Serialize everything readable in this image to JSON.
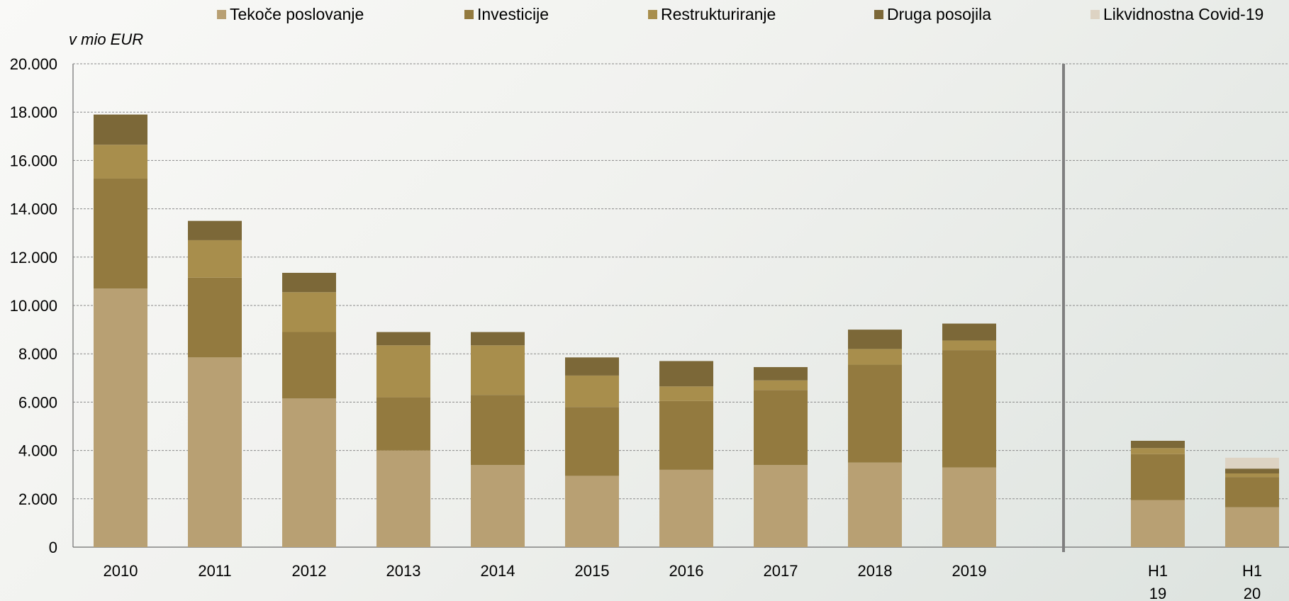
{
  "chart_data": {
    "type": "bar",
    "stacked": true,
    "unit_label": "v mio EUR",
    "categories": [
      {
        "line1": "2010",
        "line2": ""
      },
      {
        "line1": "2011",
        "line2": ""
      },
      {
        "line1": "2012",
        "line2": ""
      },
      {
        "line1": "2013",
        "line2": ""
      },
      {
        "line1": "2014",
        "line2": ""
      },
      {
        "line1": "2015",
        "line2": ""
      },
      {
        "line1": "2016",
        "line2": ""
      },
      {
        "line1": "2017",
        "line2": ""
      },
      {
        "line1": "2018",
        "line2": ""
      },
      {
        "line1": "2019",
        "line2": ""
      },
      {
        "line1": "H1",
        "line2": "19"
      },
      {
        "line1": "H1",
        "line2": "20"
      }
    ],
    "series": [
      {
        "name": "Tekoče poslovanje",
        "color": "#b8a073",
        "values": [
          10700,
          7850,
          6150,
          4000,
          3400,
          2950,
          3200,
          3400,
          3500,
          3300,
          1950,
          1650
        ]
      },
      {
        "name": "Investicije",
        "color": "#937a3f",
        "values": [
          4550,
          3300,
          2750,
          2200,
          2900,
          2850,
          2850,
          3100,
          4050,
          4850,
          1900,
          1250
        ]
      },
      {
        "name": "Restrukturiranje",
        "color": "#a88e4c",
        "values": [
          1400,
          1550,
          1650,
          2150,
          2050,
          1300,
          600,
          400,
          650,
          400,
          250,
          150
        ]
      },
      {
        "name": "Druga posojila",
        "color": "#7c6838",
        "values": [
          1250,
          800,
          800,
          550,
          550,
          750,
          1050,
          550,
          800,
          700,
          300,
          200
        ]
      },
      {
        "name": "Likvidnostna Covid-19",
        "color": "#ddd3c3",
        "values": [
          0,
          0,
          0,
          0,
          0,
          0,
          0,
          0,
          0,
          0,
          0,
          450
        ]
      }
    ],
    "y_ticks": [
      "0",
      "2.000",
      "4.000",
      "6.000",
      "8.000",
      "10.000",
      "12.000",
      "14.000",
      "16.000",
      "18.000",
      "20.000"
    ],
    "ylim": [
      0,
      20000
    ],
    "grid": true,
    "legend_position": "top",
    "separator_after_category": 9
  }
}
